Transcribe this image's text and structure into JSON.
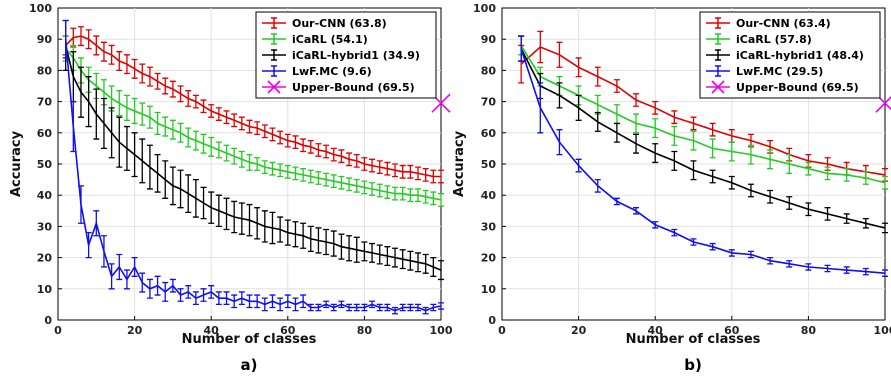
{
  "panels": [
    {
      "label": "a)",
      "xlabel": "Number of classes",
      "ylabel": "Accuracy"
    },
    {
      "label": "b)",
      "xlabel": "Number of classes",
      "ylabel": "Accuracy"
    }
  ],
  "chart_data": [
    {
      "type": "line",
      "xlabel": "Number of classes",
      "ylabel": "Accuracy",
      "xlim": [
        0,
        100
      ],
      "ylim": [
        0,
        100
      ],
      "xticks": [
        0,
        20,
        40,
        60,
        80,
        100
      ],
      "yticks": [
        0,
        10,
        20,
        30,
        40,
        50,
        60,
        70,
        80,
        90,
        100
      ],
      "grid": true,
      "legend_position": "top-right",
      "series": [
        {
          "name": "Our-CNN (63.8)",
          "color": "#e00000",
          "x": [
            2,
            4,
            6,
            8,
            10,
            12,
            14,
            16,
            18,
            20,
            22,
            24,
            26,
            28,
            30,
            32,
            34,
            36,
            38,
            40,
            42,
            44,
            46,
            48,
            50,
            52,
            54,
            56,
            58,
            60,
            62,
            64,
            66,
            68,
            70,
            72,
            74,
            76,
            78,
            80,
            82,
            84,
            86,
            88,
            90,
            92,
            94,
            96,
            98,
            100
          ],
          "y": [
            88,
            90.5,
            91,
            90,
            88,
            86,
            85,
            83,
            82,
            80.5,
            79,
            78,
            76.5,
            75,
            74,
            72.5,
            71,
            70,
            68.5,
            67,
            66,
            65,
            64,
            63,
            62,
            61.5,
            60.5,
            59.5,
            58.5,
            57.5,
            57,
            56,
            55.5,
            54.5,
            54,
            53,
            52.5,
            51.5,
            51,
            50,
            49.5,
            49,
            48.5,
            48,
            47.5,
            47.5,
            47,
            46.5,
            46,
            46
          ],
          "err": [
            3,
            3,
            3,
            3,
            3,
            3,
            3,
            3,
            3,
            3,
            3,
            3,
            2.5,
            2.5,
            2.5,
            2.5,
            2.5,
            2,
            2,
            2,
            2,
            2,
            2,
            2,
            2,
            2,
            2,
            2,
            2,
            2,
            2,
            2,
            2,
            2,
            2,
            2,
            2,
            2,
            2,
            2,
            2,
            2,
            2,
            2,
            2,
            2,
            2,
            2,
            2,
            2
          ]
        },
        {
          "name": "iCaRL (54.1)",
          "color": "#22cc22",
          "x": [
            2,
            4,
            6,
            8,
            10,
            12,
            14,
            16,
            18,
            20,
            22,
            24,
            26,
            28,
            30,
            32,
            34,
            36,
            38,
            40,
            42,
            44,
            46,
            48,
            50,
            52,
            54,
            56,
            58,
            60,
            62,
            64,
            66,
            68,
            70,
            72,
            74,
            76,
            78,
            80,
            82,
            84,
            86,
            88,
            90,
            92,
            94,
            96,
            98,
            100
          ],
          "y": [
            87,
            84,
            80,
            77,
            75,
            73,
            71,
            69.5,
            68,
            67,
            66,
            65,
            63,
            62,
            61,
            60,
            58.5,
            57.5,
            56.5,
            55.5,
            54.5,
            53.5,
            52.5,
            51.5,
            50.5,
            50,
            49,
            48.5,
            48,
            47.5,
            47,
            46.5,
            46,
            45.5,
            45,
            44.5,
            44,
            43.5,
            43,
            42.5,
            42,
            41.5,
            41,
            40.5,
            40.5,
            40,
            40,
            39.5,
            39,
            38.5
          ],
          "err": [
            4,
            4,
            4,
            4,
            4,
            4,
            4,
            4,
            4,
            4,
            3.5,
            3.5,
            3.5,
            3,
            3,
            3,
            3,
            3,
            3,
            3,
            2.5,
            2.5,
            2.5,
            2.5,
            2.5,
            2,
            2,
            2,
            2,
            2,
            2,
            2,
            2,
            2,
            2,
            2,
            2,
            2,
            2,
            2,
            2,
            2,
            2,
            2,
            2,
            2,
            2,
            2,
            2,
            2
          ]
        },
        {
          "name": "iCaRL-hybrid1 (34.9)",
          "color": "#000000",
          "x": [
            2,
            4,
            6,
            8,
            10,
            12,
            14,
            16,
            18,
            20,
            22,
            24,
            26,
            28,
            30,
            32,
            34,
            36,
            38,
            40,
            42,
            44,
            46,
            48,
            50,
            52,
            54,
            56,
            58,
            60,
            62,
            64,
            66,
            68,
            70,
            72,
            74,
            76,
            78,
            80,
            82,
            84,
            86,
            88,
            90,
            92,
            94,
            96,
            98,
            100
          ],
          "y": [
            88,
            78,
            73,
            70,
            66,
            63,
            60,
            57,
            55,
            53,
            51,
            49,
            47,
            45,
            43,
            42,
            40.5,
            39,
            37.5,
            36,
            35,
            34,
            33,
            32.5,
            32,
            31,
            30,
            29.5,
            29,
            28,
            27.5,
            27,
            26,
            25.5,
            25,
            24.5,
            23.5,
            23,
            22.5,
            22,
            21.5,
            21,
            20.5,
            20,
            19.5,
            19,
            18.5,
            18,
            17,
            16
          ],
          "err": [
            8,
            8,
            8,
            8,
            8,
            8,
            8,
            8,
            7,
            7,
            7,
            7,
            6,
            6,
            6,
            6,
            6,
            6,
            5,
            5,
            5,
            5,
            5,
            5,
            5,
            5,
            5,
            5,
            4,
            4,
            4,
            4,
            4,
            4,
            4,
            4,
            4,
            4,
            4,
            3,
            3,
            3,
            3,
            3,
            3,
            3,
            3,
            3,
            3,
            3
          ]
        },
        {
          "name": "LwF.MC (9.6)",
          "color": "#1010ee",
          "x": [
            2,
            4,
            6,
            8,
            10,
            12,
            14,
            16,
            18,
            20,
            22,
            24,
            26,
            28,
            30,
            32,
            34,
            36,
            38,
            40,
            42,
            44,
            46,
            48,
            50,
            52,
            54,
            56,
            58,
            60,
            62,
            64,
            66,
            68,
            70,
            72,
            74,
            76,
            78,
            80,
            82,
            84,
            86,
            88,
            90,
            92,
            94,
            96,
            98,
            100
          ],
          "y": [
            90,
            62,
            37,
            24,
            31,
            22,
            14,
            17,
            13,
            17,
            12,
            10,
            11,
            9,
            11,
            8,
            9,
            7,
            8,
            9,
            7,
            7,
            6,
            7,
            6,
            6,
            5,
            6,
            5,
            6,
            5,
            6,
            4,
            4,
            5,
            4,
            5,
            4,
            4,
            4,
            5,
            4,
            4,
            3,
            4,
            4,
            4,
            3,
            4,
            4.5
          ],
          "err": [
            6,
            8,
            6,
            4,
            4,
            5,
            4,
            4,
            3,
            3,
            3,
            3,
            3,
            3,
            2,
            2,
            2,
            2,
            2,
            2,
            2,
            2,
            2,
            2,
            2,
            2,
            2,
            2,
            2,
            2,
            2,
            2,
            1,
            1,
            1,
            1,
            1,
            1,
            1,
            1,
            1,
            1,
            1,
            1,
            1,
            1,
            1,
            1,
            1,
            1
          ]
        },
        {
          "name": "Upper-Bound (69.5)",
          "color": "#ee00ee",
          "marker": "x",
          "x": [
            100
          ],
          "y": [
            69.5
          ]
        }
      ]
    },
    {
      "type": "line",
      "xlabel": "Number of classes",
      "ylabel": "Accuracy",
      "xlim": [
        0,
        100
      ],
      "ylim": [
        0,
        100
      ],
      "xticks": [
        0,
        20,
        40,
        60,
        80,
        100
      ],
      "yticks": [
        0,
        10,
        20,
        30,
        40,
        50,
        60,
        70,
        80,
        90,
        100
      ],
      "grid": true,
      "legend_position": "top-right",
      "series": [
        {
          "name": "Our-CNN (63.4)",
          "color": "#e00000",
          "x": [
            5,
            10,
            15,
            20,
            25,
            30,
            35,
            40,
            45,
            50,
            55,
            60,
            65,
            70,
            75,
            80,
            85,
            90,
            95,
            100
          ],
          "y": [
            82,
            87.5,
            85,
            81,
            78,
            75,
            70.5,
            68,
            65,
            63,
            61,
            59,
            57.5,
            55.5,
            53,
            51,
            50,
            48.5,
            47.5,
            46.5
          ],
          "err": [
            6,
            5,
            4,
            3,
            3,
            2,
            2,
            2,
            2,
            2,
            2,
            2,
            2,
            2,
            2,
            2,
            2,
            2,
            2,
            2
          ]
        },
        {
          "name": "iCaRL (57.8)",
          "color": "#22cc22",
          "x": [
            5,
            10,
            15,
            20,
            25,
            30,
            35,
            40,
            45,
            50,
            55,
            60,
            65,
            70,
            75,
            80,
            85,
            90,
            95,
            100
          ],
          "y": [
            88,
            78,
            75,
            72,
            69,
            66,
            63,
            61.5,
            59,
            57.5,
            55,
            54,
            53,
            51.5,
            50,
            48.5,
            47,
            46.5,
            45.5,
            44
          ],
          "err": [
            3,
            3,
            3,
            3,
            3,
            3,
            3,
            3,
            3,
            3,
            3,
            3,
            3,
            3,
            3,
            2,
            2,
            2,
            2,
            2
          ]
        },
        {
          "name": "iCaRL-hybrid1 (48.4)",
          "color": "#000000",
          "x": [
            5,
            10,
            15,
            20,
            25,
            30,
            35,
            40,
            45,
            50,
            55,
            60,
            65,
            70,
            75,
            80,
            85,
            90,
            95,
            100
          ],
          "y": [
            87,
            75,
            72,
            68,
            63.5,
            60,
            56.5,
            53.5,
            51,
            48,
            46,
            44,
            41.5,
            39.5,
            37.5,
            35.5,
            34,
            32.5,
            31,
            29.5
          ],
          "err": [
            4,
            4,
            4,
            4,
            3,
            3,
            3,
            3,
            3,
            3,
            2,
            2,
            2,
            2,
            2,
            2,
            2,
            1.5,
            1.5,
            1.5
          ]
        },
        {
          "name": "LwF.MC (29.5)",
          "color": "#1010ee",
          "x": [
            5,
            10,
            15,
            20,
            25,
            30,
            35,
            40,
            45,
            50,
            55,
            60,
            65,
            70,
            75,
            80,
            85,
            90,
            95,
            100
          ],
          "y": [
            87,
            68,
            57,
            49.5,
            43,
            38,
            35,
            30.5,
            28,
            25,
            23.5,
            21.5,
            21,
            19,
            18,
            17,
            16.5,
            16,
            15.5,
            15
          ],
          "err": [
            4,
            8,
            4,
            2,
            2,
            1,
            1,
            1,
            1,
            1,
            1,
            1,
            1,
            1,
            1,
            1,
            1,
            1,
            1,
            1
          ]
        },
        {
          "name": "Upper-Bound (69.5)",
          "color": "#ee00ee",
          "marker": "x",
          "x": [
            100
          ],
          "y": [
            69.5
          ]
        }
      ]
    }
  ]
}
